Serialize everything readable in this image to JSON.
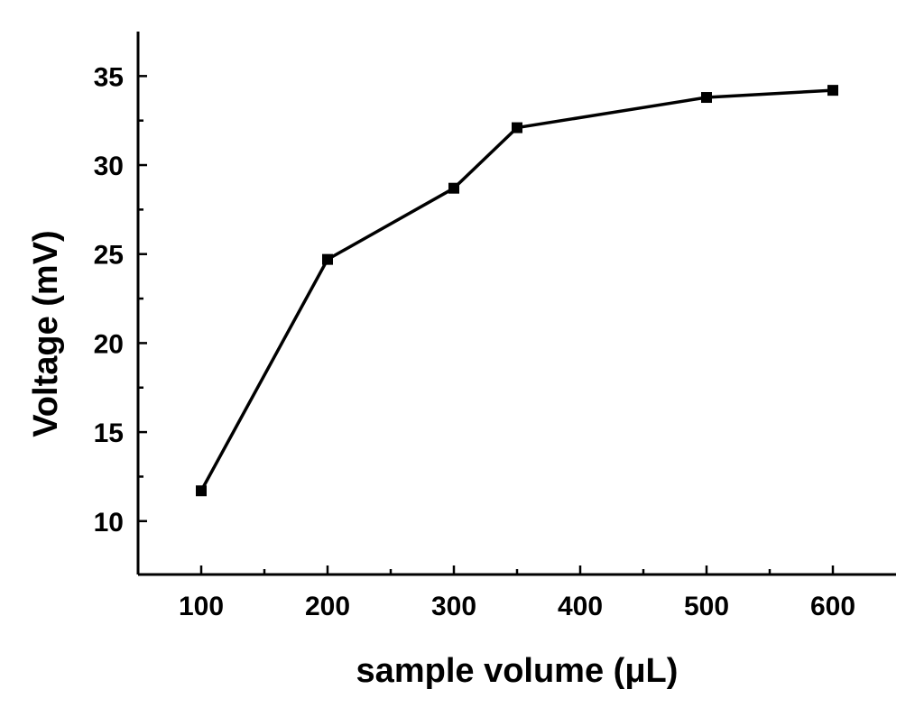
{
  "chart_data": {
    "type": "line",
    "title": "",
    "xlabel": "sample volume (μL)",
    "ylabel": "Voltage (mV)",
    "xlim": [
      50,
      650
    ],
    "ylim": [
      7,
      37.5
    ],
    "x_ticks": [
      100,
      200,
      300,
      400,
      500,
      600
    ],
    "x_minor_ticks": [
      150,
      250,
      350,
      450,
      550
    ],
    "y_ticks": [
      10,
      15,
      20,
      25,
      30,
      35
    ],
    "y_minor_ticks": [
      12.5,
      17.5,
      22.5,
      27.5,
      32.5
    ],
    "grid": false,
    "legend": "none",
    "series": [
      {
        "x": [
          100,
          200,
          300,
          350,
          500,
          600
        ],
        "y": [
          11.7,
          24.7,
          28.7,
          32.1,
          33.8,
          34.2
        ],
        "marker": "square",
        "color": "#000000"
      }
    ]
  }
}
